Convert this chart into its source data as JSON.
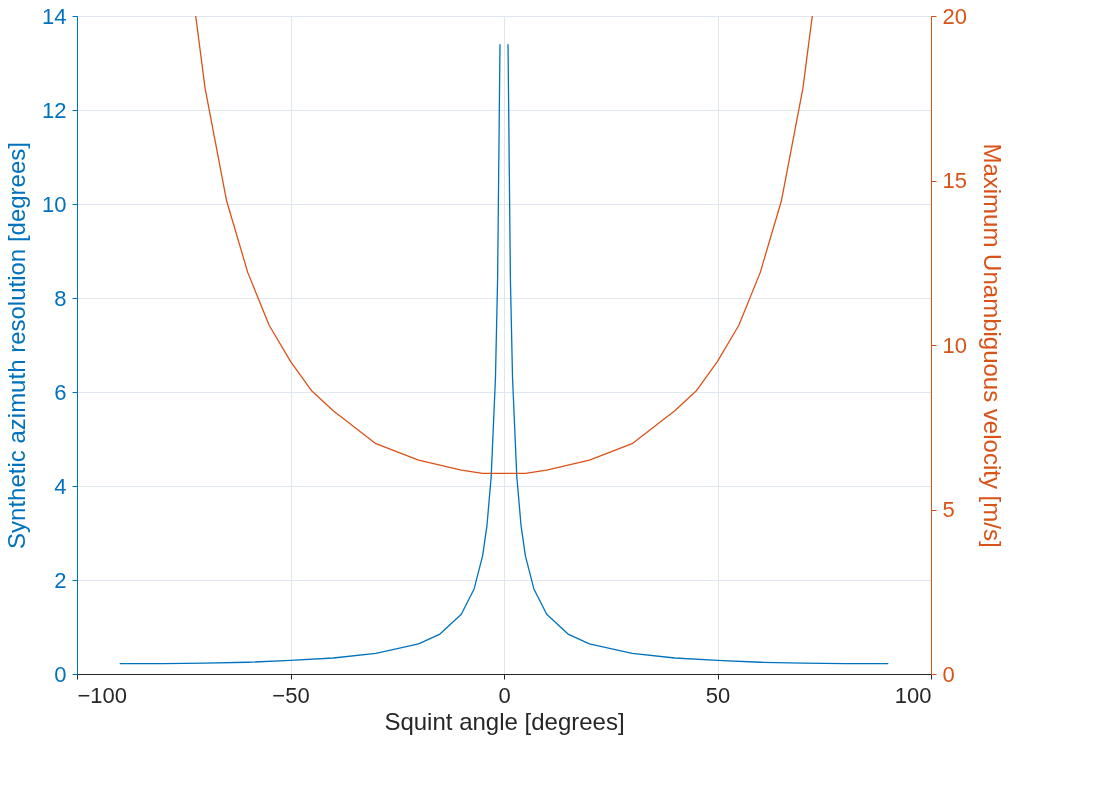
{
  "chart_data": {
    "type": "line",
    "xlabel": "Squint angle [degrees]",
    "ylabel": "Synthetic azimuth resolution [degrees]",
    "y2label": "Maximum Unambiguous velocity [m/s]",
    "xlim": [
      -100,
      100
    ],
    "xticks": [
      -100,
      -50,
      0,
      50,
      100
    ],
    "ylim": [
      0,
      14
    ],
    "yticks": [
      0,
      2,
      4,
      6,
      8,
      10,
      12,
      14
    ],
    "y2lim": [
      0,
      20
    ],
    "y2ticks": [
      0,
      5,
      10,
      15,
      20
    ],
    "grid": true,
    "series": [
      {
        "color": "#0072bd",
        "x": [
          -90,
          -80,
          -70,
          -60,
          -50,
          -40,
          -30,
          -20,
          -15,
          -10,
          -7,
          -5,
          -4,
          -3,
          -2,
          -1.5,
          -0.94,
          0,
          0.94,
          1.5,
          2,
          3,
          4,
          5,
          7,
          10,
          15,
          20,
          30,
          40,
          50,
          60,
          70,
          80,
          90
        ],
        "values": [
          0.22,
          0.22,
          0.23,
          0.25,
          0.29,
          0.34,
          0.44,
          0.64,
          0.85,
          1.27,
          1.81,
          2.52,
          3.15,
          4.2,
          6.3,
          8.4,
          13.4,
          null,
          13.4,
          8.4,
          6.3,
          4.2,
          3.15,
          2.52,
          1.81,
          1.27,
          0.85,
          0.64,
          0.44,
          0.34,
          0.29,
          0.25,
          0.23,
          0.22,
          0.22
        ]
      },
      {
        "color": "#d95319",
        "axis": "y2",
        "x": [
          -72.2,
          -70,
          -65,
          -60,
          -55,
          -50,
          -45,
          -40,
          -30,
          -20,
          -10,
          -5,
          0,
          5,
          10,
          20,
          30,
          40,
          45,
          50,
          55,
          60,
          65,
          70,
          72.2
        ],
        "values": [
          20,
          17.8,
          14.4,
          12.2,
          10.6,
          9.5,
          8.6,
          8.0,
          7.0,
          6.5,
          6.2,
          6.1,
          6.1,
          6.1,
          6.2,
          6.5,
          7.0,
          8.0,
          8.6,
          9.5,
          10.6,
          12.2,
          14.4,
          17.8,
          20
        ]
      }
    ]
  }
}
